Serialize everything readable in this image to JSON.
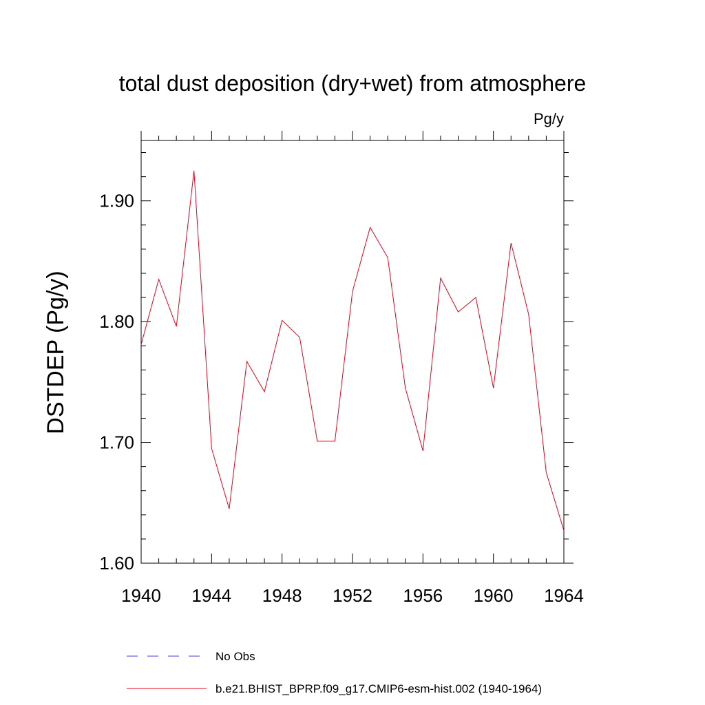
{
  "colors": {
    "series": "#e8001c",
    "obs": "#3d3dd6",
    "axis": "#000000"
  },
  "chart_data": {
    "type": "line",
    "title": "total dust deposition (dry+wet) from atmosphere",
    "units": "Pg/y",
    "ylabel": "DSTDEP  (Pg/y)",
    "xlim": [
      1940,
      1964
    ],
    "ylim": [
      1.6,
      1.95
    ],
    "x_ticks": [
      1940,
      1944,
      1948,
      1952,
      1956,
      1960,
      1964
    ],
    "x_tick_labels": [
      "1940",
      "1944",
      "1948",
      "1952",
      "1956",
      "1960",
      "1964"
    ],
    "y_ticks": [
      1.6,
      1.7,
      1.8,
      1.9
    ],
    "y_tick_labels": [
      "1.60",
      "1.70",
      "1.80",
      "1.90"
    ],
    "grid": false,
    "legend_placement": "bottom",
    "series": [
      {
        "name": "b.e21.BHIST_BPRP.f09_g17.CMIP6-esm-hist.002 (1940-1964)",
        "color": "#e8001c",
        "style": "solid",
        "x": [
          1940,
          1941,
          1942,
          1943,
          1944,
          1945,
          1946,
          1947,
          1948,
          1949,
          1950,
          1951,
          1952,
          1953,
          1954,
          1955,
          1956,
          1957,
          1958,
          1959,
          1960,
          1961,
          1962,
          1963,
          1964
        ],
        "values": [
          1.781,
          1.835,
          1.796,
          1.925,
          1.695,
          1.645,
          1.767,
          1.742,
          1.801,
          1.787,
          1.701,
          1.701,
          1.825,
          1.878,
          1.853,
          1.745,
          1.693,
          1.836,
          1.808,
          1.82,
          1.745,
          1.865,
          1.806,
          1.675,
          1.627
        ]
      }
    ],
    "legend": [
      {
        "label": "No Obs",
        "style": "dashed",
        "color": "#3d3dd6"
      },
      {
        "label": "b.e21.BHIST_BPRP.f09_g17.CMIP6-esm-hist.002 (1940-1964)",
        "style": "solid",
        "color": "#e8001c"
      }
    ]
  }
}
